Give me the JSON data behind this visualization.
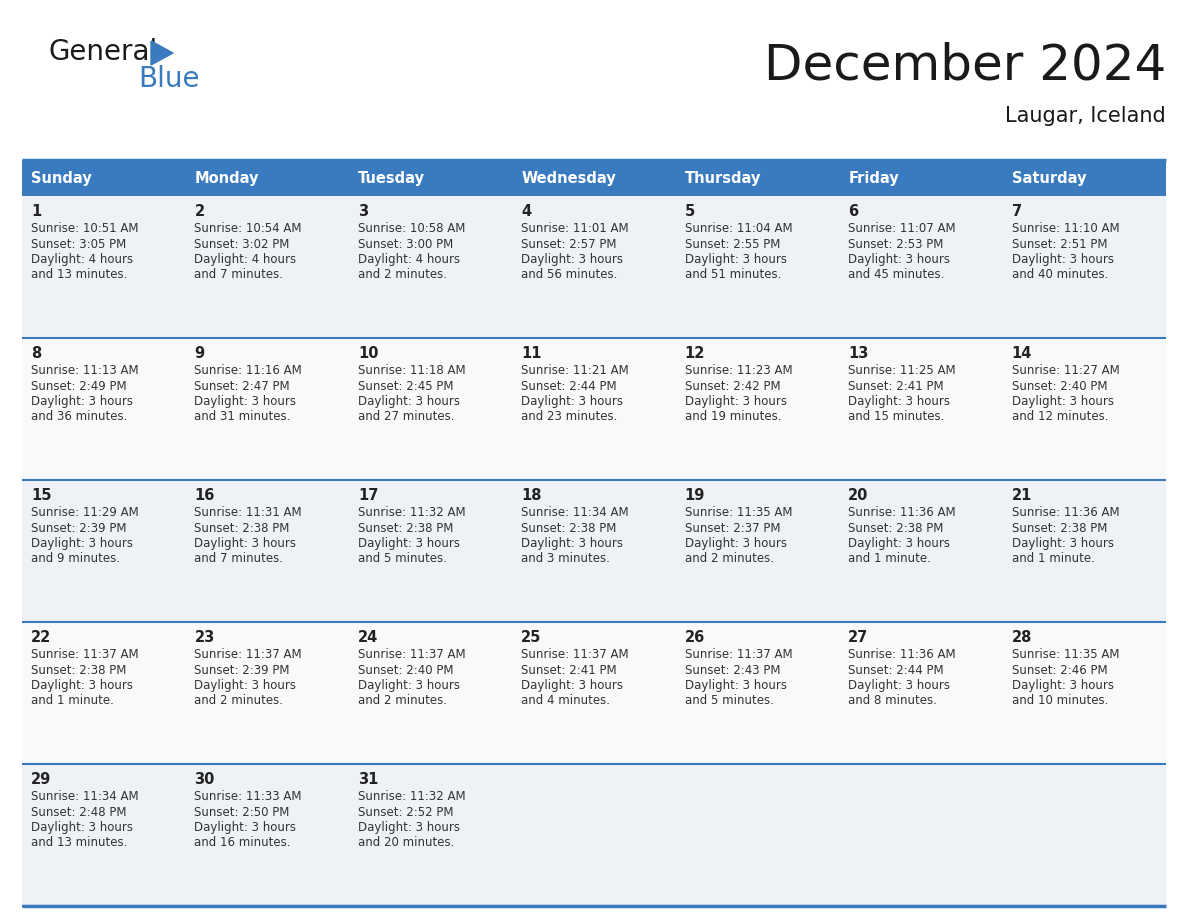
{
  "title": "December 2024",
  "subtitle": "Laugar, Iceland",
  "header_bg": "#3a7bbf",
  "header_text": "#ffffff",
  "cell_bg_odd": "#eef1f5",
  "cell_bg_even": "#f8f9fb",
  "border_color": "#3a7bbf",
  "row_divider_color": "#3a7bbf",
  "days_of_week": [
    "Sunday",
    "Monday",
    "Tuesday",
    "Wednesday",
    "Thursday",
    "Friday",
    "Saturday"
  ],
  "calendar": [
    [
      {
        "day": 1,
        "sunrise": "10:51 AM",
        "sunset": "3:05 PM",
        "daylight": "4 hours and 13 minutes."
      },
      {
        "day": 2,
        "sunrise": "10:54 AM",
        "sunset": "3:02 PM",
        "daylight": "4 hours and 7 minutes."
      },
      {
        "day": 3,
        "sunrise": "10:58 AM",
        "sunset": "3:00 PM",
        "daylight": "4 hours and 2 minutes."
      },
      {
        "day": 4,
        "sunrise": "11:01 AM",
        "sunset": "2:57 PM",
        "daylight": "3 hours and 56 minutes."
      },
      {
        "day": 5,
        "sunrise": "11:04 AM",
        "sunset": "2:55 PM",
        "daylight": "3 hours and 51 minutes."
      },
      {
        "day": 6,
        "sunrise": "11:07 AM",
        "sunset": "2:53 PM",
        "daylight": "3 hours and 45 minutes."
      },
      {
        "day": 7,
        "sunrise": "11:10 AM",
        "sunset": "2:51 PM",
        "daylight": "3 hours and 40 minutes."
      }
    ],
    [
      {
        "day": 8,
        "sunrise": "11:13 AM",
        "sunset": "2:49 PM",
        "daylight": "3 hours and 36 minutes."
      },
      {
        "day": 9,
        "sunrise": "11:16 AM",
        "sunset": "2:47 PM",
        "daylight": "3 hours and 31 minutes."
      },
      {
        "day": 10,
        "sunrise": "11:18 AM",
        "sunset": "2:45 PM",
        "daylight": "3 hours and 27 minutes."
      },
      {
        "day": 11,
        "sunrise": "11:21 AM",
        "sunset": "2:44 PM",
        "daylight": "3 hours and 23 minutes."
      },
      {
        "day": 12,
        "sunrise": "11:23 AM",
        "sunset": "2:42 PM",
        "daylight": "3 hours and 19 minutes."
      },
      {
        "day": 13,
        "sunrise": "11:25 AM",
        "sunset": "2:41 PM",
        "daylight": "3 hours and 15 minutes."
      },
      {
        "day": 14,
        "sunrise": "11:27 AM",
        "sunset": "2:40 PM",
        "daylight": "3 hours and 12 minutes."
      }
    ],
    [
      {
        "day": 15,
        "sunrise": "11:29 AM",
        "sunset": "2:39 PM",
        "daylight": "3 hours and 9 minutes."
      },
      {
        "day": 16,
        "sunrise": "11:31 AM",
        "sunset": "2:38 PM",
        "daylight": "3 hours and 7 minutes."
      },
      {
        "day": 17,
        "sunrise": "11:32 AM",
        "sunset": "2:38 PM",
        "daylight": "3 hours and 5 minutes."
      },
      {
        "day": 18,
        "sunrise": "11:34 AM",
        "sunset": "2:38 PM",
        "daylight": "3 hours and 3 minutes."
      },
      {
        "day": 19,
        "sunrise": "11:35 AM",
        "sunset": "2:37 PM",
        "daylight": "3 hours and 2 minutes."
      },
      {
        "day": 20,
        "sunrise": "11:36 AM",
        "sunset": "2:38 PM",
        "daylight": "3 hours and 1 minute."
      },
      {
        "day": 21,
        "sunrise": "11:36 AM",
        "sunset": "2:38 PM",
        "daylight": "3 hours and 1 minute."
      }
    ],
    [
      {
        "day": 22,
        "sunrise": "11:37 AM",
        "sunset": "2:38 PM",
        "daylight": "3 hours and 1 minute."
      },
      {
        "day": 23,
        "sunrise": "11:37 AM",
        "sunset": "2:39 PM",
        "daylight": "3 hours and 2 minutes."
      },
      {
        "day": 24,
        "sunrise": "11:37 AM",
        "sunset": "2:40 PM",
        "daylight": "3 hours and 2 minutes."
      },
      {
        "day": 25,
        "sunrise": "11:37 AM",
        "sunset": "2:41 PM",
        "daylight": "3 hours and 4 minutes."
      },
      {
        "day": 26,
        "sunrise": "11:37 AM",
        "sunset": "2:43 PM",
        "daylight": "3 hours and 5 minutes."
      },
      {
        "day": 27,
        "sunrise": "11:36 AM",
        "sunset": "2:44 PM",
        "daylight": "3 hours and 8 minutes."
      },
      {
        "day": 28,
        "sunrise": "11:35 AM",
        "sunset": "2:46 PM",
        "daylight": "3 hours and 10 minutes."
      }
    ],
    [
      {
        "day": 29,
        "sunrise": "11:34 AM",
        "sunset": "2:48 PM",
        "daylight": "3 hours and 13 minutes."
      },
      {
        "day": 30,
        "sunrise": "11:33 AM",
        "sunset": "2:50 PM",
        "daylight": "3 hours and 16 minutes."
      },
      {
        "day": 31,
        "sunrise": "11:32 AM",
        "sunset": "2:52 PM",
        "daylight": "3 hours and 20 minutes."
      },
      null,
      null,
      null,
      null
    ]
  ]
}
